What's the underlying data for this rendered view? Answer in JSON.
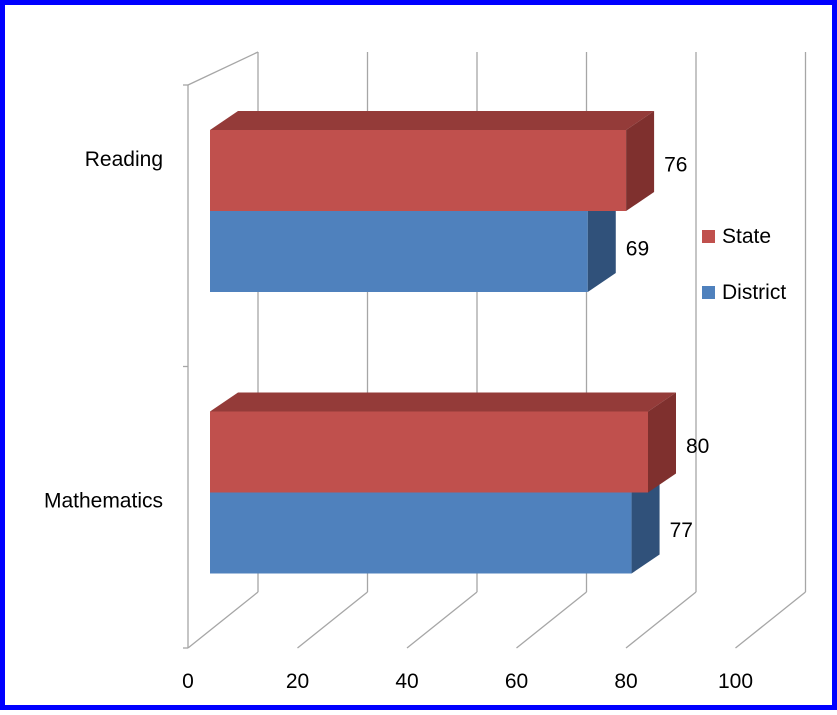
{
  "colors": {
    "frame": "#0000ff",
    "grid": "#a6a6a6",
    "state": "#c0504d",
    "state_side": "#7f302e",
    "state_top": "#943b39",
    "district": "#4f81bd",
    "district_side": "#30517a",
    "district_top": "#3f6794"
  },
  "chart_data": {
    "type": "bar",
    "orientation": "horizontal",
    "three_d": true,
    "categories": [
      "Mathematics",
      "Reading"
    ],
    "series": [
      {
        "name": "District",
        "values": [
          77,
          69
        ]
      },
      {
        "name": "State",
        "values": [
          80,
          76
        ]
      }
    ],
    "xlim": [
      0,
      100
    ],
    "x_ticks": [
      "0",
      "20",
      "40",
      "60",
      "80",
      "100"
    ],
    "grid": true,
    "legend": {
      "position": "right",
      "entries": [
        "State",
        "District"
      ]
    },
    "title": "",
    "xlabel": "",
    "ylabel": ""
  }
}
